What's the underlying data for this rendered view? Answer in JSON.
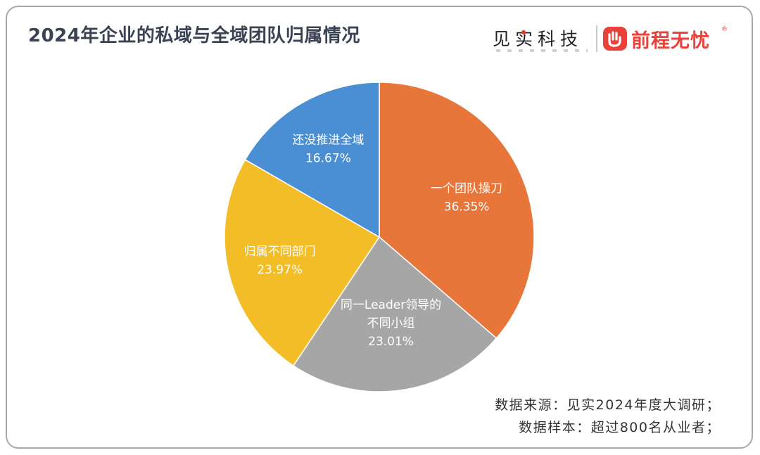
{
  "title": "2024年企业的私域与全域团队归属情况",
  "brand": {
    "left_name": "见实科技",
    "right_name": "前程无忧",
    "right_mark": "®",
    "accent_color": "#e9423a"
  },
  "chart_data": {
    "type": "pie",
    "title": "2024年企业的私域与全域团队归属情况",
    "slices": [
      {
        "label_lines": [
          "一个团队操刀"
        ],
        "value": 36.35,
        "display": "36.35%",
        "color": "#e8763a"
      },
      {
        "label_lines": [
          "同一Leader领导的",
          "不同小组"
        ],
        "value": 23.01,
        "display": "23.01%",
        "color": "#a6a6a6"
      },
      {
        "label_lines": [
          "归属不同部门"
        ],
        "value": 23.97,
        "display": "23.97%",
        "color": "#f2bd27"
      },
      {
        "label_lines": [
          "还没推进全域"
        ],
        "value": 16.67,
        "display": "16.67%",
        "color": "#4a8fd4"
      }
    ],
    "start": "12 o'clock",
    "direction": "clockwise",
    "legend": "none"
  },
  "footnotes": {
    "source": "数据来源：见实2024年度大调研；",
    "sample": "数据样本：超过800名从业者；"
  }
}
